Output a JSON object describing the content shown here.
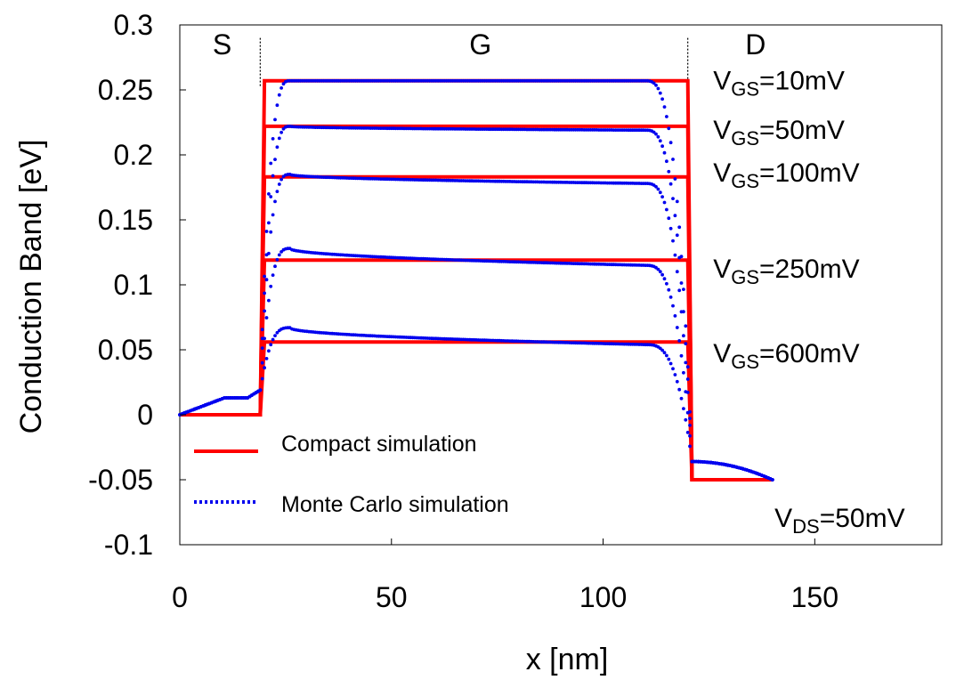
{
  "chart_data": {
    "type": "line",
    "xlabel": "x [nm]",
    "ylabel": "Conduction Band [eV]",
    "xlim": [
      0,
      180
    ],
    "ylim": [
      -0.1,
      0.3
    ],
    "x_ticks": [
      "0",
      "50",
      "100",
      "150"
    ],
    "y_ticks": [
      "0.3",
      "0.25",
      "0.2",
      "0.15",
      "0.1",
      "0.05",
      "0",
      "-0.05",
      "-0.1"
    ],
    "regions": [
      {
        "label": "S",
        "x": 10
      },
      {
        "label": "G",
        "x": 71
      },
      {
        "label": "D",
        "x": 136
      }
    ],
    "region_boundaries": [
      19,
      120
    ],
    "legend": {
      "position": "bottom-left",
      "entries": [
        {
          "name": "Compact simulation",
          "style": "solid",
          "color": "#ff0000"
        },
        {
          "name": "Monte Carlo simulation",
          "style": "dotted",
          "color": "#0000ee"
        }
      ]
    },
    "drain_bias": {
      "prefix": "V",
      "sub": "DS",
      "suffix": "=50mV",
      "x": 150,
      "y": -0.078
    },
    "series": [
      {
        "name": "VGS=10mV",
        "label_prefix": "V",
        "label_sub": "GS",
        "label_suffix": "=10mV",
        "label_y": 0.2505,
        "compact": [
          [
            0,
            0
          ],
          [
            19,
            0
          ],
          [
            20,
            0.257
          ],
          [
            120,
            0.257
          ],
          [
            121,
            -0.05
          ],
          [
            140,
            -0.05
          ]
        ],
        "mc_barrier": 0.257,
        "mc_peak": 0.257
      },
      {
        "name": "VGS=50mV",
        "label_prefix": "V",
        "label_sub": "GS",
        "label_suffix": "=50mV",
        "label_y": 0.2125,
        "compact": [
          [
            0,
            0
          ],
          [
            19,
            0
          ],
          [
            20,
            0.222
          ],
          [
            120,
            0.222
          ],
          [
            121,
            -0.05
          ],
          [
            140,
            -0.05
          ]
        ],
        "mc_barrier": 0.219,
        "mc_peak": 0.222
      },
      {
        "name": "VGS=100mV",
        "label_prefix": "V",
        "label_sub": "GS",
        "label_suffix": "=100mV",
        "label_y": 0.1795,
        "compact": [
          [
            0,
            0
          ],
          [
            19,
            0
          ],
          [
            20,
            0.183
          ],
          [
            120,
            0.183
          ],
          [
            121,
            -0.05
          ],
          [
            140,
            -0.05
          ]
        ],
        "mc_barrier": 0.178,
        "mc_peak": 0.185
      },
      {
        "name": "VGS=250mV",
        "label_prefix": "V",
        "label_sub": "GS",
        "label_suffix": "=250mV",
        "label_y": 0.1055,
        "compact": [
          [
            0,
            0
          ],
          [
            19,
            0
          ],
          [
            20,
            0.119
          ],
          [
            120,
            0.119
          ],
          [
            121,
            -0.05
          ],
          [
            140,
            -0.05
          ]
        ],
        "mc_barrier": 0.115,
        "mc_peak": 0.128
      },
      {
        "name": "VGS=600mV",
        "label_prefix": "V",
        "label_sub": "GS",
        "label_suffix": "=600mV",
        "label_y": 0.0405,
        "compact": [
          [
            0,
            0
          ],
          [
            19,
            0
          ],
          [
            20,
            0.056
          ],
          [
            120,
            0.056
          ],
          [
            121,
            -0.05
          ],
          [
            140,
            -0.05
          ]
        ],
        "mc_barrier": 0.054,
        "mc_peak": 0.067
      }
    ],
    "mc_source_level": 0.013,
    "mc_drain_level": -0.036,
    "mc_end": -0.05,
    "colors": {
      "compact": "#ff0000",
      "monte_carlo": "#0000ee",
      "axes": "#000000"
    }
  }
}
